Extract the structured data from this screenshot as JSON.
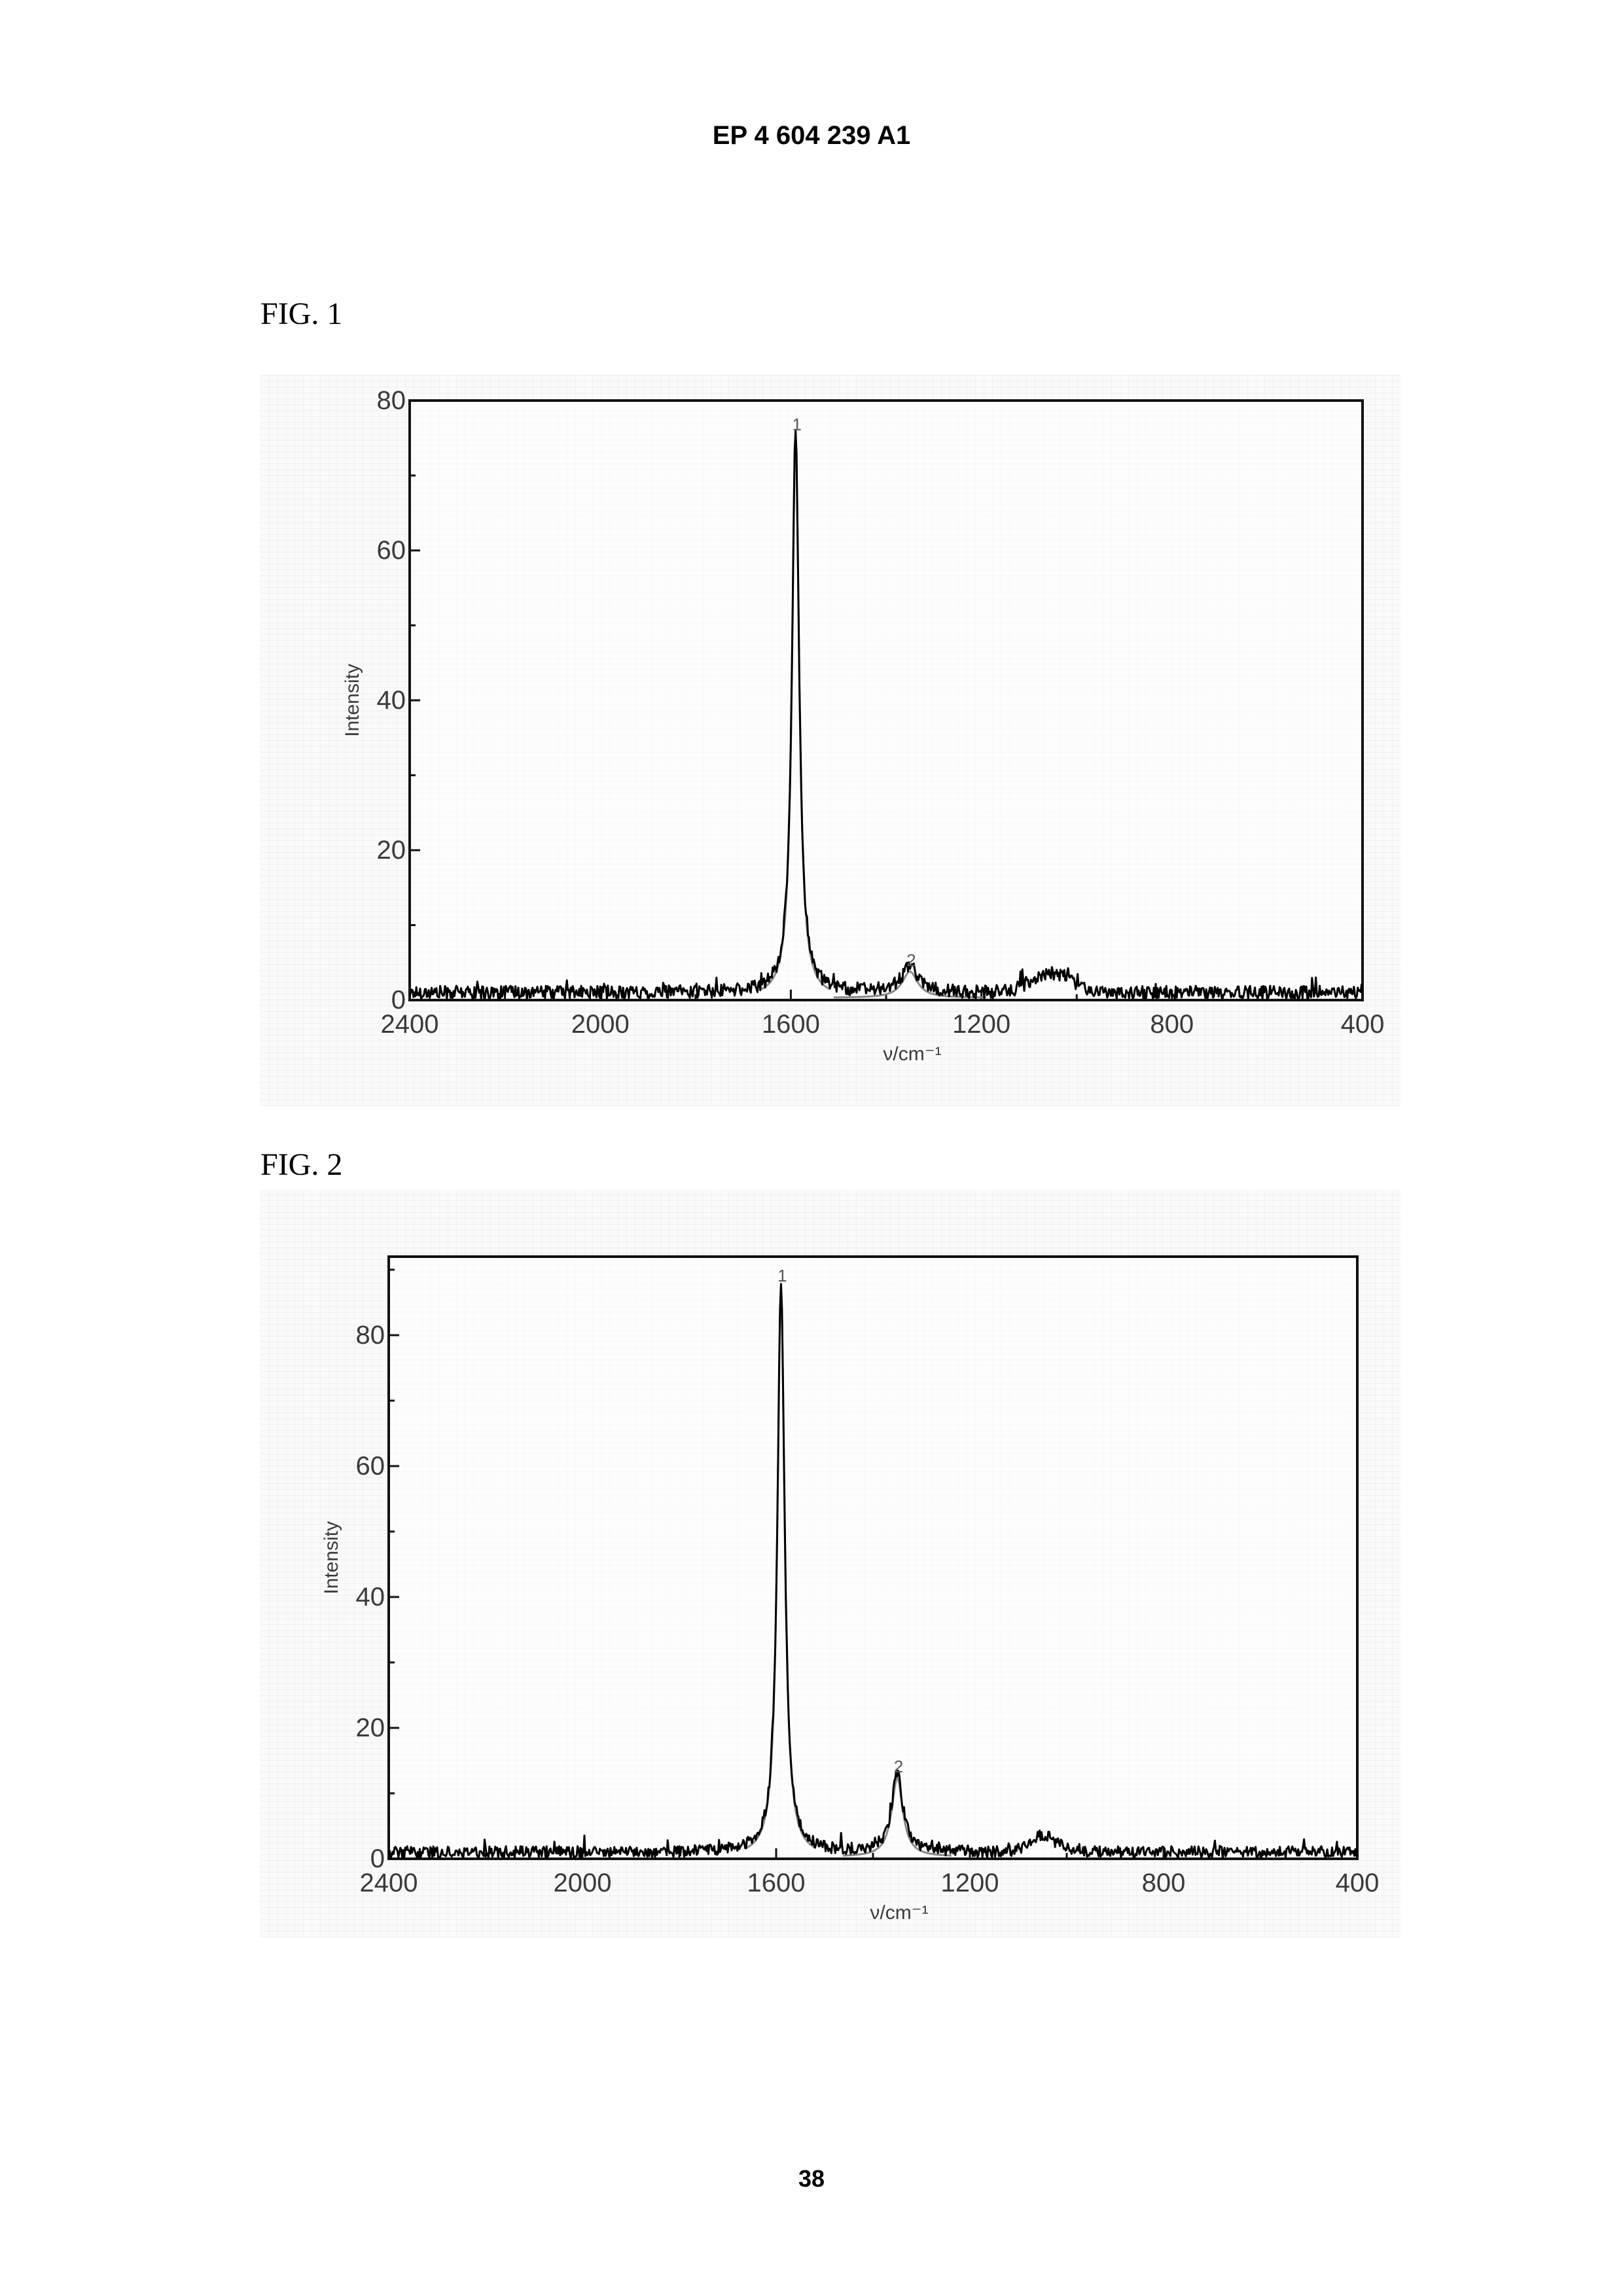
{
  "header": {
    "publication_number": "EP 4 604 239 A1"
  },
  "page_number": "38",
  "figures": [
    {
      "label": "FIG. 1"
    },
    {
      "label": "FIG. 2"
    }
  ],
  "chart_data": [
    {
      "type": "line",
      "figure": "FIG. 1",
      "xlabel": "ν/cm⁻¹",
      "ylabel": "Intensity",
      "xlim": [
        2400,
        400
      ],
      "x_reversed": true,
      "ylim": [
        0,
        80
      ],
      "xticks": [
        2400,
        2000,
        1600,
        1200,
        800,
        400
      ],
      "xtick_labels": [
        "2400",
        "2000",
        "1600",
        "1200",
        "800",
        "400"
      ],
      "yticks": [
        0,
        20,
        40,
        60,
        80
      ],
      "ytick_labels": [
        "0",
        "20",
        "40",
        "60",
        "80"
      ],
      "grid": false,
      "baseline": 1,
      "peaks": [
        {
          "label": "1",
          "x": 1590,
          "y": 75,
          "width": 18
        },
        {
          "label": "2",
          "x": 1350,
          "y": 3.5,
          "width": 40
        }
      ],
      "bumps": [
        {
          "x": 1050,
          "y": 2.5,
          "width": 120
        }
      ],
      "noise_amplitude": 0.9,
      "line_color": "#000000",
      "fit_color": "#888888"
    },
    {
      "type": "line",
      "figure": "FIG. 2",
      "xlabel": "ν/cm⁻¹",
      "ylabel": "Intensity",
      "xlim": [
        2400,
        400
      ],
      "x_reversed": true,
      "ylim": [
        0,
        92
      ],
      "xticks": [
        2400,
        2000,
        1600,
        1200,
        800,
        400
      ],
      "xtick_labels": [
        "2400",
        "2000",
        "1600",
        "1200",
        "800",
        "400"
      ],
      "yticks": [
        0,
        20,
        40,
        60,
        80
      ],
      "ytick_labels": [
        "0",
        "20",
        "40",
        "60",
        "80"
      ],
      "grid": false,
      "baseline": 1,
      "peaks": [
        {
          "label": "1",
          "x": 1590,
          "y": 87,
          "width": 18
        },
        {
          "label": "2",
          "x": 1350,
          "y": 12,
          "width": 28
        }
      ],
      "bumps": [
        {
          "x": 1050,
          "y": 2.5,
          "width": 80
        }
      ],
      "noise_amplitude": 0.9,
      "line_color": "#000000",
      "fit_color": "#888888"
    }
  ]
}
